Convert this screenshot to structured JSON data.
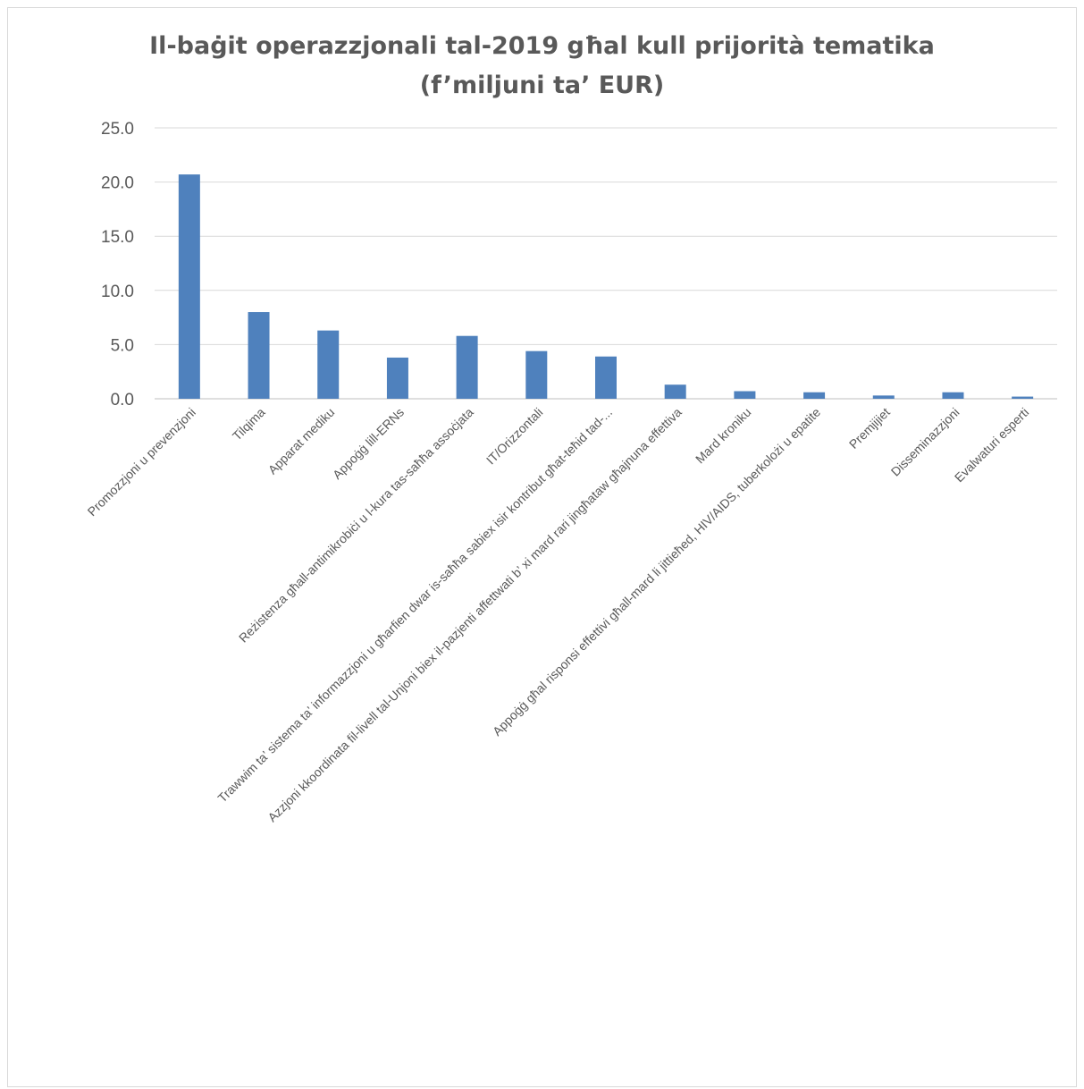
{
  "chart_data": {
    "type": "bar",
    "title_line1": "Il-baġit operazzjonali tal-2019 għal kull prijorità tematika",
    "title_line2": "(f’miljuni ta’ EUR)",
    "xlabel": "",
    "ylabel": "",
    "ylim": [
      0,
      25
    ],
    "yticks": [
      "0.0",
      "5.0",
      "10.0",
      "15.0",
      "20.0",
      "25.0"
    ],
    "grid": true,
    "legend": "none",
    "bar_color": "#4f81bd",
    "categories": [
      "Promozzjoni u prevenzjoni",
      "Tilqima",
      "Apparat mediku",
      "Appoġġ lill-ERNs",
      "Reżistenza għall-antimikrobiċi u l-kura tas-saħħa assoċjata",
      "IT/Orizzontali",
      "Trawwim ta’ sistema ta’ informazzjoni u għarfien dwar is-saħħa sabiex isir kontribut għat-teħid tad-...",
      "Azzjoni kkoordinata fil-livell tal-Unjoni biex il-pazjenti affettwati b’ xi mard rari jingħataw għajnuna effettiva",
      "Mard kroniku",
      "Appoġġ għal risponsi effettivi għall-mard li jittieħed, HIV/AIDS, tuberkolożi u epatite",
      "Premjijiet",
      "Disseminazzjoni",
      "Evalwaturi esperti"
    ],
    "values": [
      20.7,
      8.0,
      6.3,
      3.8,
      5.8,
      4.4,
      3.9,
      1.3,
      0.7,
      0.6,
      0.3,
      0.6,
      0.2
    ]
  }
}
